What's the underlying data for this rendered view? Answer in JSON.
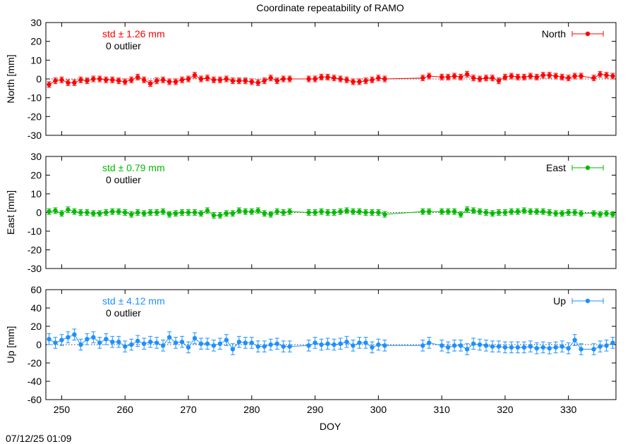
{
  "timestamp": "07/12/25 01:09",
  "chart_data": {
    "type": "line",
    "title": "Coordinate repeatability of RAMO",
    "xlabel": "DOY",
    "xlim": [
      247.5,
      337.5
    ],
    "xticks": [
      250,
      260,
      270,
      280,
      290,
      300,
      310,
      320,
      330
    ],
    "grid": false,
    "legend_position": "top-right",
    "panels": [
      {
        "key": "north",
        "ylabel": "North [mm]",
        "ylim": [
          -30,
          30
        ],
        "yticks": [
          -30,
          -20,
          -10,
          0,
          10,
          20,
          30
        ],
        "legend": "North",
        "std_text": "std ± 1.26 mm",
        "outlier_text": "0 outlier",
        "color": "#ff0000",
        "err": 1.5,
        "x": [
          248,
          249,
          250,
          251,
          252,
          253,
          254,
          255,
          256,
          257,
          258,
          259,
          260,
          261,
          262,
          263,
          264,
          265,
          266,
          267,
          268,
          269,
          270,
          271,
          272,
          273,
          274,
          275,
          276,
          277,
          278,
          279,
          280,
          281,
          282,
          283,
          284,
          285,
          286,
          289,
          290,
          291,
          292,
          293,
          294,
          295,
          296,
          297,
          298,
          299,
          300,
          301,
          307,
          308,
          310,
          311,
          312,
          313,
          314,
          315,
          316,
          317,
          318,
          319,
          320,
          321,
          322,
          323,
          324,
          325,
          326,
          327,
          328,
          329,
          330,
          331,
          332,
          334,
          335,
          336,
          337
        ],
        "values": [
          -3,
          -1,
          -0.5,
          -2,
          -2,
          -0.5,
          -1,
          0,
          0,
          -0.5,
          -0.5,
          -1,
          -1.5,
          -0.5,
          1,
          -0.5,
          -2.5,
          -1,
          -0.5,
          -1.5,
          -1.5,
          -0.5,
          0,
          2,
          0,
          0.5,
          -0.5,
          -0.5,
          0,
          -1,
          -1,
          -1,
          -1.5,
          -2,
          -1,
          0.5,
          -1,
          0,
          0,
          0,
          0,
          1,
          1,
          0.5,
          0,
          -0.5,
          -1.5,
          -1.5,
          -1,
          -0.5,
          0.5,
          0,
          0.5,
          1.5,
          1,
          1,
          1.5,
          1,
          2.5,
          0.5,
          0,
          0.5,
          0.5,
          -1,
          1,
          1.5,
          1,
          1,
          1.5,
          1,
          2,
          2,
          1.5,
          1,
          0.5,
          1.5,
          1.5,
          0.5,
          2.5,
          2,
          1.5
        ]
      },
      {
        "key": "east",
        "ylabel": "East [mm]",
        "ylim": [
          -30,
          30
        ],
        "yticks": [
          -30,
          -20,
          -10,
          0,
          10,
          20,
          30
        ],
        "legend": "East",
        "std_text": "std ± 0.79 mm",
        "outlier_text": "0 outlier",
        "color": "#00bb00",
        "err": 1.5,
        "x": [
          248,
          249,
          250,
          251,
          252,
          253,
          254,
          255,
          256,
          257,
          258,
          259,
          260,
          261,
          262,
          263,
          264,
          265,
          266,
          267,
          268,
          269,
          270,
          271,
          272,
          273,
          274,
          275,
          276,
          277,
          278,
          279,
          280,
          281,
          282,
          283,
          284,
          285,
          286,
          289,
          290,
          291,
          292,
          293,
          294,
          295,
          296,
          297,
          298,
          299,
          300,
          301,
          307,
          308,
          310,
          311,
          312,
          313,
          314,
          315,
          316,
          317,
          318,
          319,
          320,
          321,
          322,
          323,
          324,
          325,
          326,
          327,
          328,
          329,
          330,
          331,
          332,
          334,
          335,
          336,
          337
        ],
        "values": [
          0.5,
          1,
          -0.5,
          1.5,
          0.5,
          0,
          0,
          -0.5,
          -0.5,
          0,
          0.5,
          0.5,
          0,
          -1,
          0,
          -0.5,
          0,
          0,
          0.5,
          -1,
          -0.5,
          0,
          0,
          0,
          -0.5,
          1,
          -1.5,
          -1.5,
          -0.5,
          -0.5,
          1,
          0.5,
          0.5,
          1,
          -0.5,
          -1,
          0.5,
          0,
          0.5,
          0,
          0,
          0.5,
          0,
          0,
          0.5,
          1,
          0.5,
          0.5,
          0,
          0,
          0,
          -1,
          0.5,
          0.5,
          0.5,
          0.5,
          0.5,
          -1,
          1.5,
          1,
          0.5,
          0,
          -0.5,
          0,
          0,
          0.5,
          0.5,
          1,
          0.5,
          0.5,
          0.5,
          0,
          -0.5,
          -0.5,
          0,
          0,
          -0.5,
          -0.5,
          -1,
          -0.5,
          -1
        ]
      },
      {
        "key": "up",
        "ylabel": "Up [mm]",
        "ylim": [
          -60,
          60
        ],
        "yticks": [
          -60,
          -40,
          -20,
          0,
          20,
          40,
          60
        ],
        "legend": "Up",
        "std_text": "std ± 4.12 mm",
        "outlier_text": "0 outlier",
        "color": "#1e90ff",
        "err": 6,
        "x": [
          248,
          249,
          250,
          251,
          252,
          253,
          254,
          255,
          256,
          257,
          258,
          259,
          260,
          261,
          262,
          263,
          264,
          265,
          266,
          267,
          268,
          269,
          270,
          271,
          272,
          273,
          274,
          275,
          276,
          277,
          278,
          279,
          280,
          281,
          282,
          283,
          284,
          285,
          286,
          289,
          290,
          291,
          292,
          293,
          294,
          295,
          296,
          297,
          298,
          299,
          300,
          301,
          307,
          308,
          310,
          311,
          312,
          313,
          314,
          315,
          316,
          317,
          318,
          319,
          320,
          321,
          322,
          323,
          324,
          325,
          326,
          327,
          328,
          329,
          330,
          331,
          332,
          334,
          335,
          336,
          337
        ],
        "values": [
          6,
          2,
          5,
          8,
          11,
          0,
          6,
          8,
          2,
          6,
          3,
          3,
          -2,
          0,
          4,
          1,
          3,
          2,
          -1,
          8,
          2,
          3,
          -3,
          7,
          1,
          1,
          -1,
          1,
          5,
          -5,
          3,
          2,
          2,
          -2,
          -2,
          0,
          1,
          -2,
          -2,
          -1,
          2,
          0,
          1,
          0,
          1,
          3,
          -1,
          2,
          2,
          -3,
          0,
          -1,
          -1,
          2,
          -1,
          -3,
          -1,
          -1,
          -5,
          1,
          0,
          -1,
          -2,
          -2,
          -3,
          -3,
          -3,
          -3,
          -2,
          -4,
          -3,
          -4,
          -3,
          -2,
          -4,
          5,
          -5,
          -5,
          -2,
          -1,
          2
        ]
      }
    ]
  }
}
